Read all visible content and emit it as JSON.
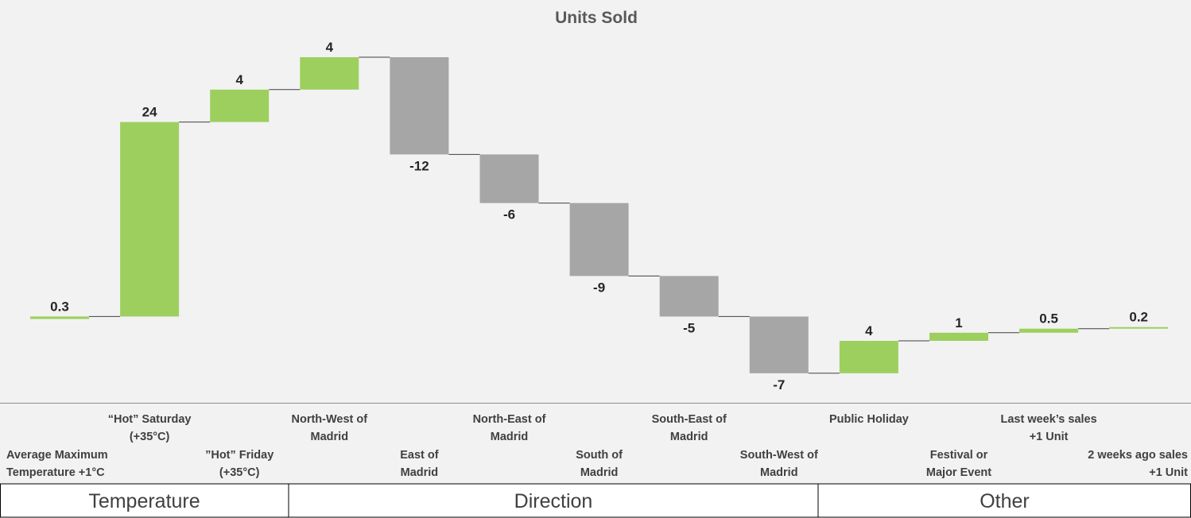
{
  "chart_data": {
    "type": "bar",
    "subtype": "waterfall",
    "title": "Units Sold",
    "categories": [
      "Average Maximum Temperature +1°C",
      "“Hot” Saturday (+35°C)",
      "”Hot” Friday (+35°C)",
      "North-West of Madrid",
      "East of Madrid",
      "North-East of Madrid",
      "South of Madrid",
      "South-East of Madrid",
      "South-West of Madrid",
      "Public Holiday",
      "Festival or Major Event",
      "Last week’s sales +1 Unit",
      "2 weeks ago sales +1 Unit"
    ],
    "category_label_lines": [
      [
        "Average Maximum",
        "Temperature +1°C"
      ],
      [
        "“Hot” Saturday",
        "(+35°C)"
      ],
      [
        "”Hot” Friday",
        "(+35°C)"
      ],
      [
        "North-West of",
        "Madrid"
      ],
      [
        "East of",
        "Madrid"
      ],
      [
        "North-East of",
        "Madrid"
      ],
      [
        "South of",
        "Madrid"
      ],
      [
        "South-East of",
        "Madrid"
      ],
      [
        "South-West of",
        "Madrid"
      ],
      [
        "Public Holiday"
      ],
      [
        "Festival or",
        "Major Event"
      ],
      [
        "Last week’s sales",
        "+1 Unit"
      ],
      [
        "2 weeks ago sales",
        "+1 Unit"
      ]
    ],
    "values": [
      0.3,
      24,
      4,
      4,
      -12,
      -6,
      -9,
      -5,
      -7,
      4,
      1,
      0.5,
      0.2
    ],
    "value_labels": [
      "0.3",
      "24",
      "4",
      "4",
      "-12",
      "-6",
      "-9",
      "-5",
      "-7",
      "4",
      "1",
      "0.5",
      "0.2"
    ],
    "groups": [
      {
        "label": "Temperature",
        "categories": [
          0,
          1,
          2
        ]
      },
      {
        "label": "Direction",
        "categories": [
          3,
          4,
          5,
          6,
          7,
          8
        ]
      },
      {
        "label": "Other",
        "categories": [
          9,
          10,
          11,
          12
        ]
      }
    ],
    "colors": {
      "increase": "#9dcf5f",
      "decrease": "#a6a6a6",
      "connector": "#404040",
      "background": "#f2f2f2",
      "group_header_bg": "#ffffff"
    },
    "legend": "none",
    "grid": false
  }
}
